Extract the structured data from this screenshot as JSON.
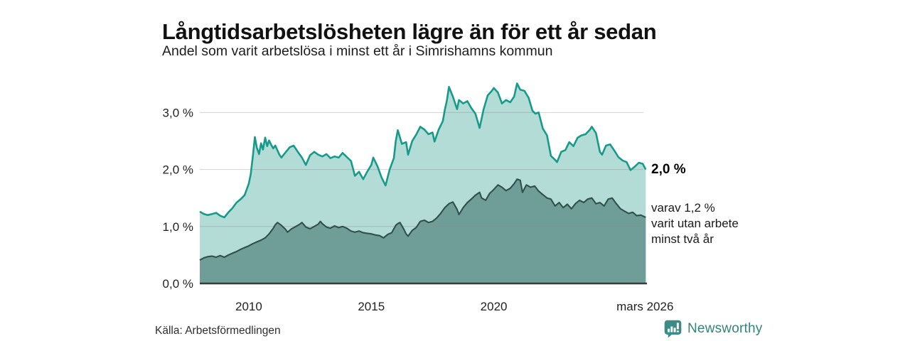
{
  "header": {
    "title": "Långtidsarbetslösheten lägre än för ett år sedan",
    "subtitle": "Andel som varit arbetslösa i minst ett år i Simrishamns kommun"
  },
  "annotations": {
    "end_value": "2,0 %",
    "end_sub": "varav 1,2 %\nvarit utan arbete\nminst två år"
  },
  "footer": {
    "source": "Källa: Arbetsförmedlingen",
    "brand": "Newsworthy"
  },
  "colors": {
    "line_total": "#189a8b",
    "fill_total": "#b2dcd5",
    "line_two_year": "#31504b",
    "fill_two_year": "#6f9e98",
    "grid": "#8a8a8a",
    "baseline": "#333d3a",
    "tick_text": "#222222",
    "brand_teal": "#38857e"
  },
  "chart_data": {
    "type": "area",
    "title": "Långtidsarbetslösheten lägre än för ett år sedan",
    "subtitle": "Andel som varit arbetslösa i minst ett år i Simrishamns kommun",
    "source": "Arbetsförmedlingen",
    "x_unit": "decimal year, monthly data 2008 – mars 2026",
    "y_unit": "percent",
    "ylim": [
      0,
      3.6
    ],
    "xlim": [
      2008.0,
      2026.25
    ],
    "grid": true,
    "grid_values": [
      1.0,
      2.0,
      3.0
    ],
    "y_ticks": [
      {
        "value": 3.0,
        "label": "3,0 %"
      },
      {
        "value": 2.0,
        "label": "2,0 %"
      },
      {
        "value": 1.0,
        "label": "1,0 %"
      },
      {
        "value": 0.0,
        "label": "0,0 %"
      }
    ],
    "x_ticks": [
      {
        "value": 2010,
        "label": "2010"
      },
      {
        "value": 2015,
        "label": "2015"
      },
      {
        "value": 2020,
        "label": "2020"
      },
      {
        "value": 2026.17,
        "label": "mars 2026"
      }
    ],
    "series": [
      {
        "name": "Andel arbetslösa minst ett år",
        "end_label": "2,0 %",
        "line_color": "#189a8b",
        "fill_color": "#b2dcd5",
        "points": [
          [
            2008.0,
            1.26
          ],
          [
            2008.17,
            1.22
          ],
          [
            2008.33,
            1.2
          ],
          [
            2008.5,
            1.22
          ],
          [
            2008.67,
            1.24
          ],
          [
            2008.83,
            1.19
          ],
          [
            2009.0,
            1.16
          ],
          [
            2009.17,
            1.25
          ],
          [
            2009.33,
            1.32
          ],
          [
            2009.5,
            1.42
          ],
          [
            2009.67,
            1.48
          ],
          [
            2009.83,
            1.55
          ],
          [
            2010.0,
            1.75
          ],
          [
            2010.08,
            1.92
          ],
          [
            2010.17,
            2.25
          ],
          [
            2010.25,
            2.57
          ],
          [
            2010.33,
            2.38
          ],
          [
            2010.42,
            2.27
          ],
          [
            2010.5,
            2.46
          ],
          [
            2010.58,
            2.35
          ],
          [
            2010.67,
            2.56
          ],
          [
            2010.75,
            2.41
          ],
          [
            2010.83,
            2.51
          ],
          [
            2010.92,
            2.43
          ],
          [
            2011.0,
            2.37
          ],
          [
            2011.08,
            2.42
          ],
          [
            2011.25,
            2.26
          ],
          [
            2011.33,
            2.21
          ],
          [
            2011.5,
            2.3
          ],
          [
            2011.67,
            2.39
          ],
          [
            2011.83,
            2.42
          ],
          [
            2012.0,
            2.31
          ],
          [
            2012.17,
            2.21
          ],
          [
            2012.33,
            2.08
          ],
          [
            2012.5,
            2.25
          ],
          [
            2012.67,
            2.31
          ],
          [
            2012.83,
            2.26
          ],
          [
            2013.0,
            2.23
          ],
          [
            2013.17,
            2.27
          ],
          [
            2013.33,
            2.2
          ],
          [
            2013.5,
            2.23
          ],
          [
            2013.67,
            2.21
          ],
          [
            2013.83,
            2.29
          ],
          [
            2014.0,
            2.22
          ],
          [
            2014.17,
            2.15
          ],
          [
            2014.33,
            1.89
          ],
          [
            2014.5,
            1.96
          ],
          [
            2014.67,
            1.83
          ],
          [
            2014.83,
            1.96
          ],
          [
            2015.0,
            2.08
          ],
          [
            2015.08,
            2.21
          ],
          [
            2015.25,
            2.06
          ],
          [
            2015.42,
            1.86
          ],
          [
            2015.58,
            1.72
          ],
          [
            2015.75,
            2.0
          ],
          [
            2015.92,
            2.2
          ],
          [
            2016.0,
            2.5
          ],
          [
            2016.08,
            2.69
          ],
          [
            2016.25,
            2.45
          ],
          [
            2016.42,
            2.48
          ],
          [
            2016.5,
            2.26
          ],
          [
            2016.67,
            2.5
          ],
          [
            2016.83,
            2.61
          ],
          [
            2017.0,
            2.75
          ],
          [
            2017.17,
            2.7
          ],
          [
            2017.33,
            2.62
          ],
          [
            2017.5,
            2.65
          ],
          [
            2017.58,
            2.49
          ],
          [
            2017.75,
            2.7
          ],
          [
            2017.92,
            2.85
          ],
          [
            2018.0,
            3.05
          ],
          [
            2018.08,
            3.2
          ],
          [
            2018.17,
            3.45
          ],
          [
            2018.33,
            3.28
          ],
          [
            2018.5,
            3.06
          ],
          [
            2018.58,
            3.22
          ],
          [
            2018.75,
            3.16
          ],
          [
            2018.92,
            3.2
          ],
          [
            2019.08,
            3.08
          ],
          [
            2019.25,
            2.98
          ],
          [
            2019.42,
            2.73
          ],
          [
            2019.58,
            3.05
          ],
          [
            2019.75,
            3.3
          ],
          [
            2019.92,
            3.38
          ],
          [
            2020.0,
            3.43
          ],
          [
            2020.17,
            3.35
          ],
          [
            2020.33,
            3.16
          ],
          [
            2020.5,
            3.22
          ],
          [
            2020.67,
            3.18
          ],
          [
            2020.83,
            3.28
          ],
          [
            2020.95,
            3.51
          ],
          [
            2021.08,
            3.4
          ],
          [
            2021.25,
            3.38
          ],
          [
            2021.42,
            3.26
          ],
          [
            2021.58,
            3.03
          ],
          [
            2021.7,
            2.98
          ],
          [
            2021.83,
            3.0
          ],
          [
            2022.0,
            2.72
          ],
          [
            2022.17,
            2.6
          ],
          [
            2022.33,
            2.24
          ],
          [
            2022.5,
            2.17
          ],
          [
            2022.58,
            2.13
          ],
          [
            2022.75,
            2.31
          ],
          [
            2022.92,
            2.34
          ],
          [
            2023.08,
            2.48
          ],
          [
            2023.25,
            2.41
          ],
          [
            2023.42,
            2.56
          ],
          [
            2023.58,
            2.6
          ],
          [
            2023.75,
            2.62
          ],
          [
            2023.92,
            2.7
          ],
          [
            2024.0,
            2.75
          ],
          [
            2024.17,
            2.64
          ],
          [
            2024.33,
            2.31
          ],
          [
            2024.42,
            2.26
          ],
          [
            2024.58,
            2.42
          ],
          [
            2024.75,
            2.44
          ],
          [
            2024.92,
            2.33
          ],
          [
            2025.08,
            2.22
          ],
          [
            2025.25,
            2.16
          ],
          [
            2025.42,
            2.13
          ],
          [
            2025.58,
            1.99
          ],
          [
            2025.75,
            2.05
          ],
          [
            2025.92,
            2.12
          ],
          [
            2026.08,
            2.1
          ],
          [
            2026.2,
            2.0
          ]
        ]
      },
      {
        "name": "varav utan arbete minst två år",
        "end_label": "varav 1,2 % varit utan arbete minst två år",
        "line_color": "#31504b",
        "fill_color": "#6f9e98",
        "points": [
          [
            2008.0,
            0.41
          ],
          [
            2008.17,
            0.45
          ],
          [
            2008.33,
            0.47
          ],
          [
            2008.5,
            0.48
          ],
          [
            2008.67,
            0.46
          ],
          [
            2008.83,
            0.49
          ],
          [
            2009.0,
            0.46
          ],
          [
            2009.17,
            0.5
          ],
          [
            2009.33,
            0.53
          ],
          [
            2009.5,
            0.56
          ],
          [
            2009.67,
            0.6
          ],
          [
            2009.83,
            0.63
          ],
          [
            2010.0,
            0.66
          ],
          [
            2010.17,
            0.7
          ],
          [
            2010.33,
            0.73
          ],
          [
            2010.5,
            0.76
          ],
          [
            2010.67,
            0.8
          ],
          [
            2010.83,
            0.87
          ],
          [
            2011.0,
            0.97
          ],
          [
            2011.08,
            1.03
          ],
          [
            2011.17,
            1.07
          ],
          [
            2011.33,
            1.02
          ],
          [
            2011.5,
            0.95
          ],
          [
            2011.58,
            0.9
          ],
          [
            2011.75,
            0.96
          ],
          [
            2011.92,
            1.0
          ],
          [
            2012.08,
            1.04
          ],
          [
            2012.17,
            1.07
          ],
          [
            2012.33,
            0.99
          ],
          [
            2012.5,
            0.96
          ],
          [
            2012.67,
            1.0
          ],
          [
            2012.83,
            1.04
          ],
          [
            2012.92,
            1.09
          ],
          [
            2013.0,
            1.05
          ],
          [
            2013.17,
            0.99
          ],
          [
            2013.33,
            0.97
          ],
          [
            2013.5,
            1.01
          ],
          [
            2013.67,
            0.98
          ],
          [
            2013.83,
            1.0
          ],
          [
            2014.0,
            0.97
          ],
          [
            2014.17,
            0.92
          ],
          [
            2014.33,
            0.9
          ],
          [
            2014.5,
            0.92
          ],
          [
            2014.67,
            0.89
          ],
          [
            2014.83,
            0.88
          ],
          [
            2015.0,
            0.87
          ],
          [
            2015.17,
            0.85
          ],
          [
            2015.33,
            0.84
          ],
          [
            2015.5,
            0.8
          ],
          [
            2015.67,
            0.86
          ],
          [
            2015.83,
            0.89
          ],
          [
            2016.0,
            1.02
          ],
          [
            2016.08,
            1.05
          ],
          [
            2016.17,
            1.07
          ],
          [
            2016.33,
            0.95
          ],
          [
            2016.42,
            0.87
          ],
          [
            2016.5,
            0.83
          ],
          [
            2016.67,
            0.93
          ],
          [
            2016.83,
            0.98
          ],
          [
            2017.0,
            1.09
          ],
          [
            2017.17,
            1.11
          ],
          [
            2017.33,
            1.07
          ],
          [
            2017.5,
            1.09
          ],
          [
            2017.67,
            1.15
          ],
          [
            2017.83,
            1.23
          ],
          [
            2018.0,
            1.33
          ],
          [
            2018.17,
            1.4
          ],
          [
            2018.33,
            1.43
          ],
          [
            2018.5,
            1.3
          ],
          [
            2018.58,
            1.21
          ],
          [
            2018.75,
            1.33
          ],
          [
            2018.92,
            1.42
          ],
          [
            2019.08,
            1.48
          ],
          [
            2019.25,
            1.55
          ],
          [
            2019.42,
            1.6
          ],
          [
            2019.5,
            1.5
          ],
          [
            2019.67,
            1.46
          ],
          [
            2019.83,
            1.58
          ],
          [
            2020.0,
            1.65
          ],
          [
            2020.17,
            1.73
          ],
          [
            2020.33,
            1.69
          ],
          [
            2020.5,
            1.63
          ],
          [
            2020.67,
            1.67
          ],
          [
            2020.83,
            1.75
          ],
          [
            2020.95,
            1.83
          ],
          [
            2021.08,
            1.81
          ],
          [
            2021.17,
            1.6
          ],
          [
            2021.33,
            1.73
          ],
          [
            2021.5,
            1.69
          ],
          [
            2021.67,
            1.71
          ],
          [
            2021.83,
            1.62
          ],
          [
            2022.0,
            1.56
          ],
          [
            2022.17,
            1.5
          ],
          [
            2022.33,
            1.48
          ],
          [
            2022.5,
            1.36
          ],
          [
            2022.67,
            1.42
          ],
          [
            2022.83,
            1.33
          ],
          [
            2023.0,
            1.39
          ],
          [
            2023.17,
            1.31
          ],
          [
            2023.33,
            1.4
          ],
          [
            2023.5,
            1.46
          ],
          [
            2023.67,
            1.42
          ],
          [
            2023.83,
            1.48
          ],
          [
            2024.0,
            1.5
          ],
          [
            2024.17,
            1.4
          ],
          [
            2024.33,
            1.42
          ],
          [
            2024.5,
            1.36
          ],
          [
            2024.67,
            1.48
          ],
          [
            2024.83,
            1.5
          ],
          [
            2025.0,
            1.4
          ],
          [
            2025.17,
            1.31
          ],
          [
            2025.33,
            1.27
          ],
          [
            2025.5,
            1.23
          ],
          [
            2025.67,
            1.25
          ],
          [
            2025.83,
            1.19
          ],
          [
            2026.0,
            1.2
          ],
          [
            2026.2,
            1.16
          ]
        ]
      }
    ],
    "legend_position": "none"
  }
}
